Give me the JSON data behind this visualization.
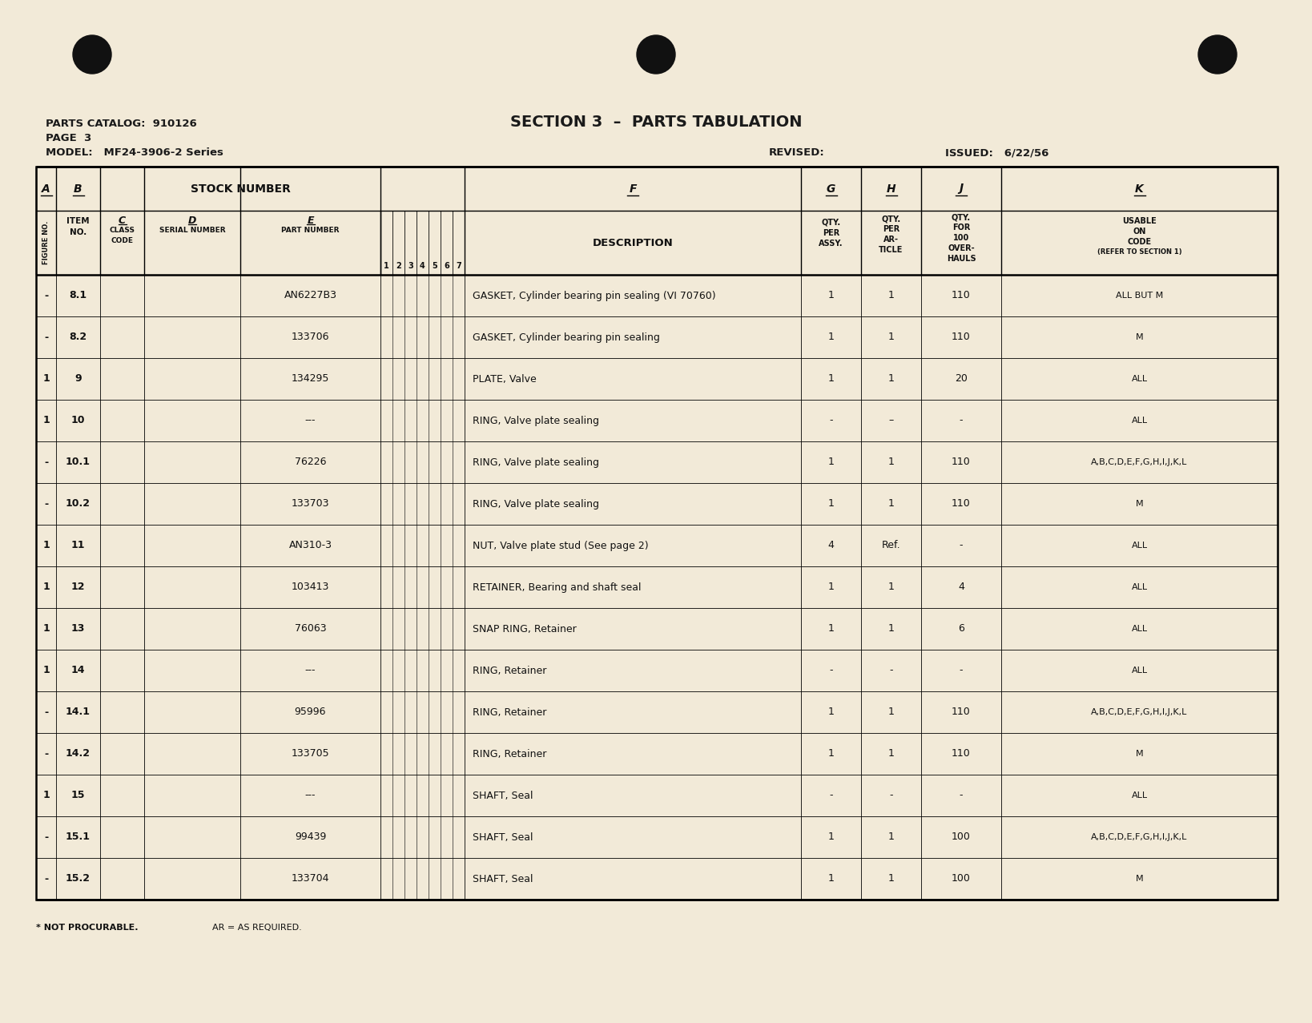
{
  "bg_color": "#f2ead8",
  "title": "SECTION 3  –  PARTS TABULATION",
  "parts_catalog": "PARTS CATALOG:  910126",
  "page": "PAGE  3",
  "model": "MODEL:   MF24-3906-2 Series",
  "revised": "REVISED:",
  "issued": "ISSUED:   6/22/56",
  "rows": [
    {
      "fig": "-",
      "item": "8.1",
      "part": "AN6227B3",
      "desc": "GASKET, Cylinder bearing pin sealing (VI 70760)",
      "qty_assy": "1",
      "qty_art": "1",
      "qty_oh": "110",
      "usable": "ALL BUT M"
    },
    {
      "fig": "-",
      "item": "8.2",
      "part": "133706",
      "desc": "GASKET, Cylinder bearing pin sealing",
      "qty_assy": "1",
      "qty_art": "1",
      "qty_oh": "110",
      "usable": "M"
    },
    {
      "fig": "1",
      "item": "9",
      "part": "134295",
      "desc": "PLATE, Valve",
      "qty_assy": "1",
      "qty_art": "1",
      "qty_oh": "20",
      "usable": "ALL"
    },
    {
      "fig": "1",
      "item": "10",
      "part": "---",
      "desc": "RING, Valve plate sealing",
      "qty_assy": "-",
      "qty_art": "–",
      "qty_oh": "-",
      "usable": "ALL"
    },
    {
      "fig": "-",
      "item": "10.1",
      "part": "76226",
      "desc": "RING, Valve plate sealing",
      "qty_assy": "1",
      "qty_art": "1",
      "qty_oh": "110",
      "usable": "A,B,C,D,E,F,G,H,I,J,K,L"
    },
    {
      "fig": "-",
      "item": "10.2",
      "part": "133703",
      "desc": "RING, Valve plate sealing",
      "qty_assy": "1",
      "qty_art": "1",
      "qty_oh": "110",
      "usable": "M"
    },
    {
      "fig": "1",
      "item": "11",
      "part": "AN310-3",
      "desc": "NUT, Valve plate stud (See page 2)",
      "qty_assy": "4",
      "qty_art": "Ref.",
      "qty_oh": "-",
      "usable": "ALL"
    },
    {
      "fig": "1",
      "item": "12",
      "part": "103413",
      "desc": "RETAINER, Bearing and shaft seal",
      "qty_assy": "1",
      "qty_art": "1",
      "qty_oh": "4",
      "usable": "ALL"
    },
    {
      "fig": "1",
      "item": "13",
      "part": "76063",
      "desc": "SNAP RING, Retainer",
      "qty_assy": "1",
      "qty_art": "1",
      "qty_oh": "6",
      "usable": "ALL"
    },
    {
      "fig": "1",
      "item": "14",
      "part": "---",
      "desc": "RING, Retainer",
      "qty_assy": "-",
      "qty_art": "-",
      "qty_oh": "-",
      "usable": "ALL"
    },
    {
      "fig": "-",
      "item": "14.1",
      "part": "95996",
      "desc": "RING, Retainer",
      "qty_assy": "1",
      "qty_art": "1",
      "qty_oh": "110",
      "usable": "A,B,C,D,E,F,G,H,I,J,K,L"
    },
    {
      "fig": "-",
      "item": "14.2",
      "part": "133705",
      "desc": "RING, Retainer",
      "qty_assy": "1",
      "qty_art": "1",
      "qty_oh": "110",
      "usable": "M"
    },
    {
      "fig": "1",
      "item": "15",
      "part": "---",
      "desc": "SHAFT, Seal",
      "qty_assy": "-",
      "qty_art": "-",
      "qty_oh": "-",
      "usable": "ALL"
    },
    {
      "fig": "-",
      "item": "15.1",
      "part": "99439",
      "desc": "SHAFT, Seal",
      "qty_assy": "1",
      "qty_art": "1",
      "qty_oh": "100",
      "usable": "A,B,C,D,E,F,G,H,I,J,K,L"
    },
    {
      "fig": "-",
      "item": "15.2",
      "part": "133704",
      "desc": "SHAFT, Seal",
      "qty_assy": "1",
      "qty_art": "1",
      "qty_oh": "100",
      "usable": "M"
    }
  ],
  "footer_left": "* NOT PROCURABLE.",
  "footer_right": "AR = AS REQUIRED."
}
